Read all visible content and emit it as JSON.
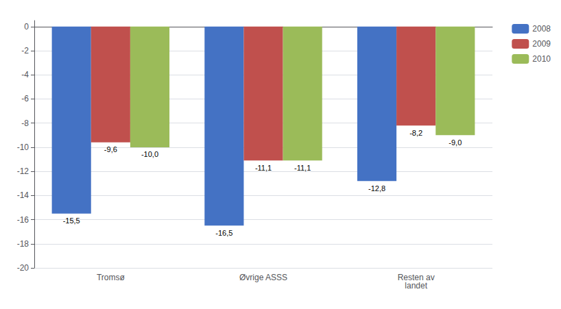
{
  "chart_data": {
    "type": "bar",
    "categories": [
      "Tromsø",
      "Øvrige ASSS",
      "Resten av\nlandet"
    ],
    "series": [
      {
        "name": "2008",
        "color": "#4472C4",
        "values": [
          -15.5,
          -16.5,
          -12.8
        ],
        "value_labels": [
          "-15,5",
          "-16,5",
          "-12,8"
        ]
      },
      {
        "name": "2009",
        "color": "#C0504D",
        "values": [
          -9.6,
          -11.1,
          -8.2
        ],
        "value_labels": [
          "-9,6",
          "-11,1",
          "-8,2"
        ]
      },
      {
        "name": "2010",
        "color": "#9BBB59",
        "values": [
          -10.0,
          -11.1,
          -9.0
        ],
        "value_labels": [
          "-10,0",
          "-11,1",
          "-9,0"
        ]
      }
    ],
    "ylim": [
      -20,
      0.5
    ],
    "yticks": [
      0,
      -2,
      -4,
      -6,
      -8,
      -10,
      -12,
      -14,
      -16,
      -18,
      -20
    ],
    "grid": true,
    "legend": "right",
    "data_labels": true
  }
}
